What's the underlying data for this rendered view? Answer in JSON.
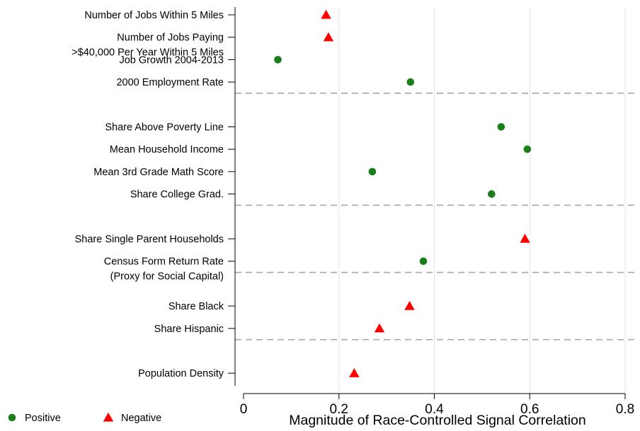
{
  "chart_data": {
    "type": "scatter",
    "xlabel": "Magnitude of Race-Controlled Signal Correlation",
    "ylabel": "",
    "title": "",
    "xlim": [
      0,
      0.8
    ],
    "xticks": [
      "0",
      "0.2",
      "0.4",
      "0.6",
      "0.8"
    ],
    "grid": "vertical",
    "legend_position": "bottom-left",
    "colors": {
      "positive": "#1a7f1a",
      "negative": "#ff0000"
    },
    "legend": [
      {
        "name": "Positive",
        "marker": "circle",
        "color": "#1a7f1a"
      },
      {
        "name": "Negative",
        "marker": "triangle",
        "color": "#ff0000"
      }
    ],
    "groups": [
      [
        {
          "label": [
            "Number of Jobs Within 5 Miles"
          ],
          "value": 0.173,
          "sign": "negative"
        },
        {
          "label": [
            "Number of Jobs Paying",
            ">$40,000 Per Year Within 5 Miles"
          ],
          "value": 0.178,
          "sign": "negative"
        },
        {
          "label": [
            "Job Growth 2004-2013"
          ],
          "value": 0.072,
          "sign": "positive"
        },
        {
          "label": [
            "2000 Employment Rate"
          ],
          "value": 0.35,
          "sign": "positive"
        }
      ],
      [
        {
          "label": [
            "Share Above Poverty Line"
          ],
          "value": 0.54,
          "sign": "positive"
        },
        {
          "label": [
            "Mean Household Income"
          ],
          "value": 0.595,
          "sign": "positive"
        },
        {
          "label": [
            "Mean 3rd Grade Math Score"
          ],
          "value": 0.27,
          "sign": "positive"
        },
        {
          "label": [
            "Share College Grad."
          ],
          "value": 0.52,
          "sign": "positive"
        }
      ],
      [
        {
          "label": [
            "Share Single Parent Households"
          ],
          "value": 0.59,
          "sign": "negative"
        },
        {
          "label": [
            "Census Form Return Rate",
            "(Proxy for Social Capital)"
          ],
          "value": 0.377,
          "sign": "positive"
        }
      ],
      [
        {
          "label": [
            "Share Black"
          ],
          "value": 0.348,
          "sign": "negative"
        },
        {
          "label": [
            "Share Hispanic"
          ],
          "value": 0.285,
          "sign": "negative"
        }
      ],
      [
        {
          "label": [
            "Population Density"
          ],
          "value": 0.232,
          "sign": "negative"
        }
      ]
    ]
  }
}
